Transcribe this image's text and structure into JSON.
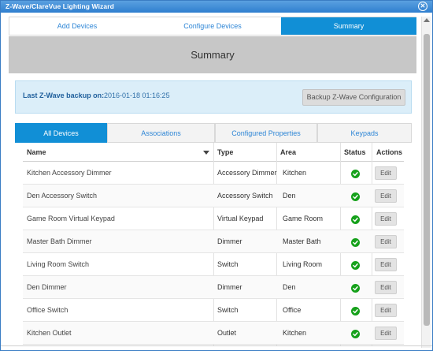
{
  "window": {
    "title": "Z-Wave/ClareVue Lighting Wizard"
  },
  "wizard_tabs": [
    {
      "label": "Add Devices",
      "active": false
    },
    {
      "label": "Configure Devices",
      "active": false
    },
    {
      "label": "Summary",
      "active": true
    }
  ],
  "summary": {
    "heading": "Summary"
  },
  "backup": {
    "label": "Last Z-Wave backup on:",
    "date": "2016-01-18 01:16:25",
    "button_label": "Backup Z-Wave Configuration"
  },
  "sub_tabs": [
    {
      "label": "All Devices",
      "active": true
    },
    {
      "label": "Associations",
      "active": false
    },
    {
      "label": "Configured Properties",
      "active": false
    },
    {
      "label": "Keypads",
      "active": false
    }
  ],
  "table": {
    "columns": {
      "name": "Name",
      "type": "Type",
      "area": "Area",
      "status": "Status",
      "actions": "Actions"
    },
    "rows": [
      {
        "name": "Kitchen Accessory Dimmer",
        "type": "Accessory Dimmer",
        "area": "Kitchen",
        "status": "ok",
        "action": "Edit"
      },
      {
        "name": "Den Accessory Switch",
        "type": "Accessory Switch",
        "area": "Den",
        "status": "ok",
        "action": "Edit"
      },
      {
        "name": "Game Room Virtual Keypad",
        "type": "Virtual Keypad",
        "area": "Game Room",
        "status": "ok",
        "action": "Edit"
      },
      {
        "name": "Master Bath Dimmer",
        "type": "Dimmer",
        "area": "Master Bath",
        "status": "ok",
        "action": "Edit"
      },
      {
        "name": "Living Room Switch",
        "type": "Switch",
        "area": "Living Room",
        "status": "ok",
        "action": "Edit"
      },
      {
        "name": "Den Dimmer",
        "type": "Dimmer",
        "area": "Den",
        "status": "ok",
        "action": "Edit"
      },
      {
        "name": "Office Switch",
        "type": "Switch",
        "area": "Office",
        "status": "ok",
        "action": "Edit"
      },
      {
        "name": "Kitchen Outlet",
        "type": "Outlet",
        "area": "Kitchen",
        "status": "ok",
        "action": "Edit"
      }
    ]
  },
  "colors": {
    "accent": "#118fd6",
    "status_ok": "#16a11b",
    "backup_bg": "#dbeef9"
  }
}
